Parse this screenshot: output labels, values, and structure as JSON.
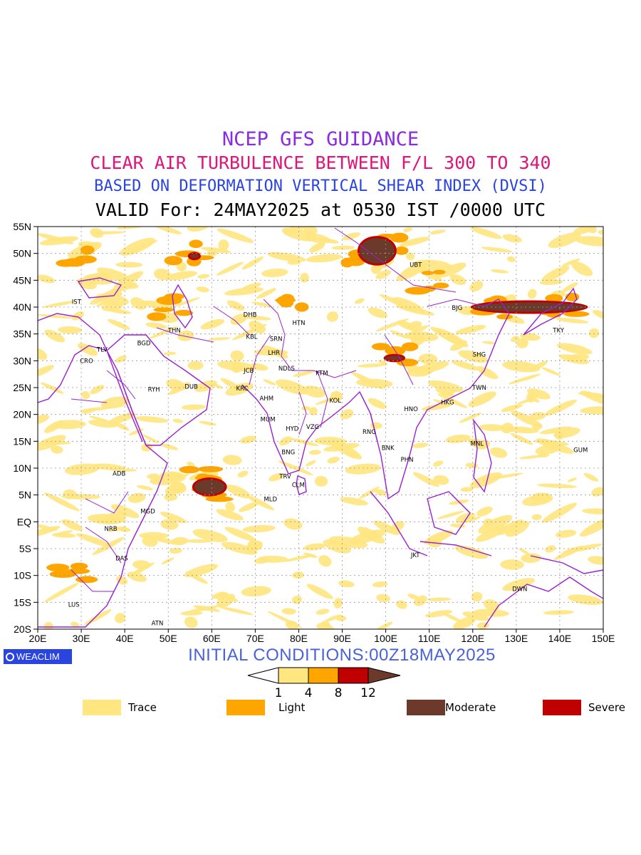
{
  "titles": {
    "line1": "NCEP GFS GUIDANCE",
    "line2": "CLEAR AIR TURBULENCE BETWEEN F/L 300 TO 340",
    "line3": "BASED ON DEFORMATION VERTICAL SHEAR INDEX (DVSI)",
    "line4": "VALID For: 24MAY2025 at 0530 IST /0000 UTC"
  },
  "axes": {
    "lat_labels": [
      "55N",
      "50N",
      "45N",
      "40N",
      "35N",
      "30N",
      "25N",
      "20N",
      "15N",
      "10N",
      "5N",
      "EQ",
      "5S",
      "10S",
      "15S",
      "20S"
    ],
    "lon_labels": [
      "20E",
      "30E",
      "40E",
      "50E",
      "60E",
      "70E",
      "80E",
      "90E",
      "100E",
      "110E",
      "120E",
      "130E",
      "140E",
      "150E"
    ],
    "lat_range": [
      -20,
      55
    ],
    "lon_range": [
      20,
      150
    ]
  },
  "cities": [
    {
      "name": "IST",
      "lon": 28.9,
      "lat": 41.0
    },
    {
      "name": "TLV",
      "lon": 34.8,
      "lat": 32.1
    },
    {
      "name": "CRO",
      "lon": 31.2,
      "lat": 30.0
    },
    {
      "name": "BGD",
      "lon": 44.4,
      "lat": 33.3
    },
    {
      "name": "THN",
      "lon": 51.4,
      "lat": 35.7
    },
    {
      "name": "RYH",
      "lon": 46.7,
      "lat": 24.7
    },
    {
      "name": "DUB",
      "lon": 55.3,
      "lat": 25.2
    },
    {
      "name": "DHB",
      "lon": 68.8,
      "lat": 38.6
    },
    {
      "name": "KBL",
      "lon": 69.2,
      "lat": 34.5
    },
    {
      "name": "SRN",
      "lon": 74.8,
      "lat": 34.1
    },
    {
      "name": "LHR",
      "lon": 74.3,
      "lat": 31.5
    },
    {
      "name": "JCB",
      "lon": 68.5,
      "lat": 28.2
    },
    {
      "name": "KRC",
      "lon": 67.0,
      "lat": 24.9
    },
    {
      "name": "AHM",
      "lon": 72.6,
      "lat": 23.0
    },
    {
      "name": "NDLS",
      "lon": 77.2,
      "lat": 28.6
    },
    {
      "name": "HTN",
      "lon": 80.0,
      "lat": 37.1
    },
    {
      "name": "KTM",
      "lon": 85.3,
      "lat": 27.7
    },
    {
      "name": "KOL",
      "lon": 88.4,
      "lat": 22.6
    },
    {
      "name": "MUM",
      "lon": 72.9,
      "lat": 19.1
    },
    {
      "name": "HYD",
      "lon": 78.5,
      "lat": 17.4
    },
    {
      "name": "VZG",
      "lon": 83.2,
      "lat": 17.7
    },
    {
      "name": "BNG",
      "lon": 77.6,
      "lat": 13.0
    },
    {
      "name": "TRV",
      "lon": 76.9,
      "lat": 8.5
    },
    {
      "name": "CLM",
      "lon": 79.9,
      "lat": 6.9
    },
    {
      "name": "MLD",
      "lon": 73.5,
      "lat": 4.2
    },
    {
      "name": "RNG",
      "lon": 96.2,
      "lat": 16.8
    },
    {
      "name": "BNK",
      "lon": 100.5,
      "lat": 13.8
    },
    {
      "name": "PHN",
      "lon": 104.9,
      "lat": 11.6
    },
    {
      "name": "HNO",
      "lon": 105.8,
      "lat": 21.0
    },
    {
      "name": "HKG",
      "lon": 114.2,
      "lat": 22.3
    },
    {
      "name": "TWN",
      "lon": 121.5,
      "lat": 25.0
    },
    {
      "name": "SHG",
      "lon": 121.5,
      "lat": 31.2
    },
    {
      "name": "BJG",
      "lon": 116.4,
      "lat": 39.9
    },
    {
      "name": "UBT",
      "lon": 106.9,
      "lat": 47.9
    },
    {
      "name": "TKY",
      "lon": 139.7,
      "lat": 35.7
    },
    {
      "name": "MNL",
      "lon": 121.0,
      "lat": 14.6
    },
    {
      "name": "GUM",
      "lon": 144.8,
      "lat": 13.4
    },
    {
      "name": "JKT",
      "lon": 106.8,
      "lat": -6.2
    },
    {
      "name": "DWN",
      "lon": 130.8,
      "lat": -12.5
    },
    {
      "name": "ADB",
      "lon": 38.7,
      "lat": 9.0
    },
    {
      "name": "MGD",
      "lon": 45.3,
      "lat": 2.0
    },
    {
      "name": "NRB",
      "lon": 36.8,
      "lat": -1.3
    },
    {
      "name": "DAS",
      "lon": 39.3,
      "lat": -6.8
    },
    {
      "name": "LUS",
      "lon": 28.3,
      "lat": -15.4
    },
    {
      "name": "ATN",
      "lon": 47.5,
      "lat": -18.9
    }
  ],
  "turbulence_regions": [
    {
      "level": "moderate",
      "lon_range": [
        94,
        102
      ],
      "lat_range": [
        48,
        53
      ]
    },
    {
      "level": "moderate",
      "lon_range": [
        55,
        57
      ],
      "lat_range": [
        49,
        50
      ]
    },
    {
      "level": "moderate",
      "lon_range": [
        120,
        146
      ],
      "lat_range": [
        39,
        41
      ]
    },
    {
      "level": "moderate",
      "lon_range": [
        100,
        104
      ],
      "lat_range": [
        30,
        31
      ]
    },
    {
      "level": "moderate",
      "lon_range": [
        56,
        63
      ],
      "lat_range": [
        5,
        8
      ]
    }
  ],
  "init_text": "INITIAL CONDITIONS:00Z18MAY2025",
  "logo_text": "WEACLIM",
  "colorbar": {
    "ticks": [
      "1",
      "4",
      "8",
      "12"
    ],
    "colors": [
      "#ffe680",
      "#ffa500",
      "#c00000",
      "#6b3a2a"
    ]
  },
  "legend": [
    {
      "label": "Trace",
      "color": "#ffe680"
    },
    {
      "label": "Light",
      "color": "#ffa500"
    },
    {
      "label": "Moderate",
      "color": "#6b3a2a"
    },
    {
      "label": "Severe",
      "color": "#c00000"
    }
  ],
  "colors": {
    "boundary": "#9a1fd0",
    "trace": "#ffe680",
    "light": "#ffa500",
    "moderate": "#6b3a2a",
    "severe": "#c00000"
  }
}
